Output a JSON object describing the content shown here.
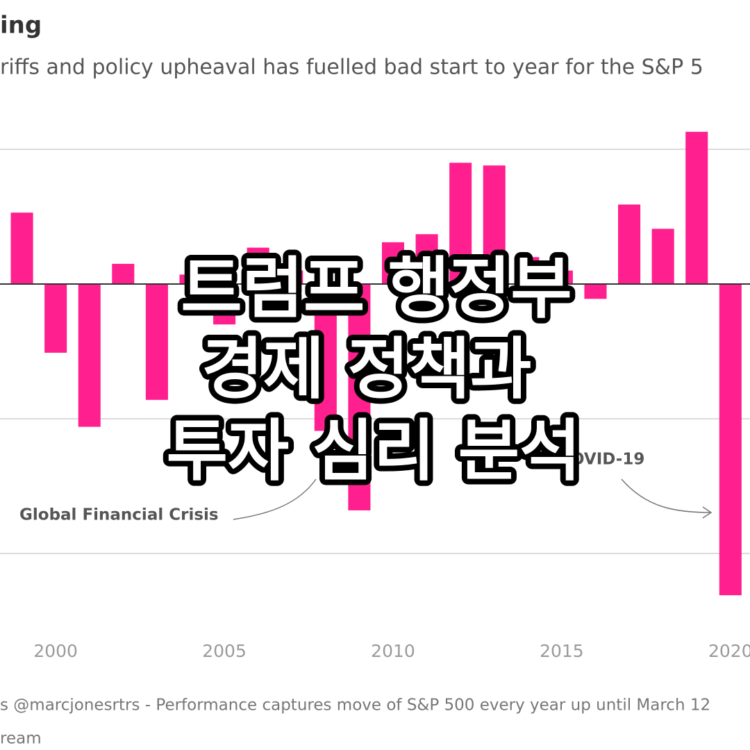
{
  "chart_data": {
    "type": "bar",
    "title": "ing",
    "subtitle": "riffs and policy upheaval has fuelled bad start to year for the  S&P 5",
    "annotations": [
      "Global Financial Crisis",
      "OVID-19"
    ],
    "footer": [
      "s @marcjonesrtrs - Performance captures move of S&P 500 every year up until March 12",
      "ream"
    ],
    "x": [
      1999,
      2000,
      2001,
      2002,
      2003,
      2004,
      2005,
      2006,
      2007,
      2008,
      2009,
      2010,
      2011,
      2012,
      2013,
      2014,
      2015,
      2016,
      2017,
      2018,
      2019,
      2020
    ],
    "values": [
      5.3,
      -5.1,
      -10.6,
      1.5,
      -8.6,
      0.7,
      -3,
      2.7,
      1,
      -10.9,
      -16.8,
      3.1,
      3.7,
      9.0,
      8.8,
      2,
      1,
      -1.1,
      5.9,
      4.1,
      11.3,
      -23.1
    ],
    "color": "#ff1f8e",
    "xlim": [
      1998.35,
      2020.58
    ],
    "xticks": [
      2000,
      2005,
      2010,
      2015,
      2020
    ],
    "ylim": [
      -27,
      12
    ],
    "yticks": [
      -20,
      -10,
      0,
      10
    ],
    "grid": true
  },
  "overlay": {
    "lines": [
      "트럼프 행정부",
      "경제 정책과",
      "투자 심리 분석"
    ]
  }
}
